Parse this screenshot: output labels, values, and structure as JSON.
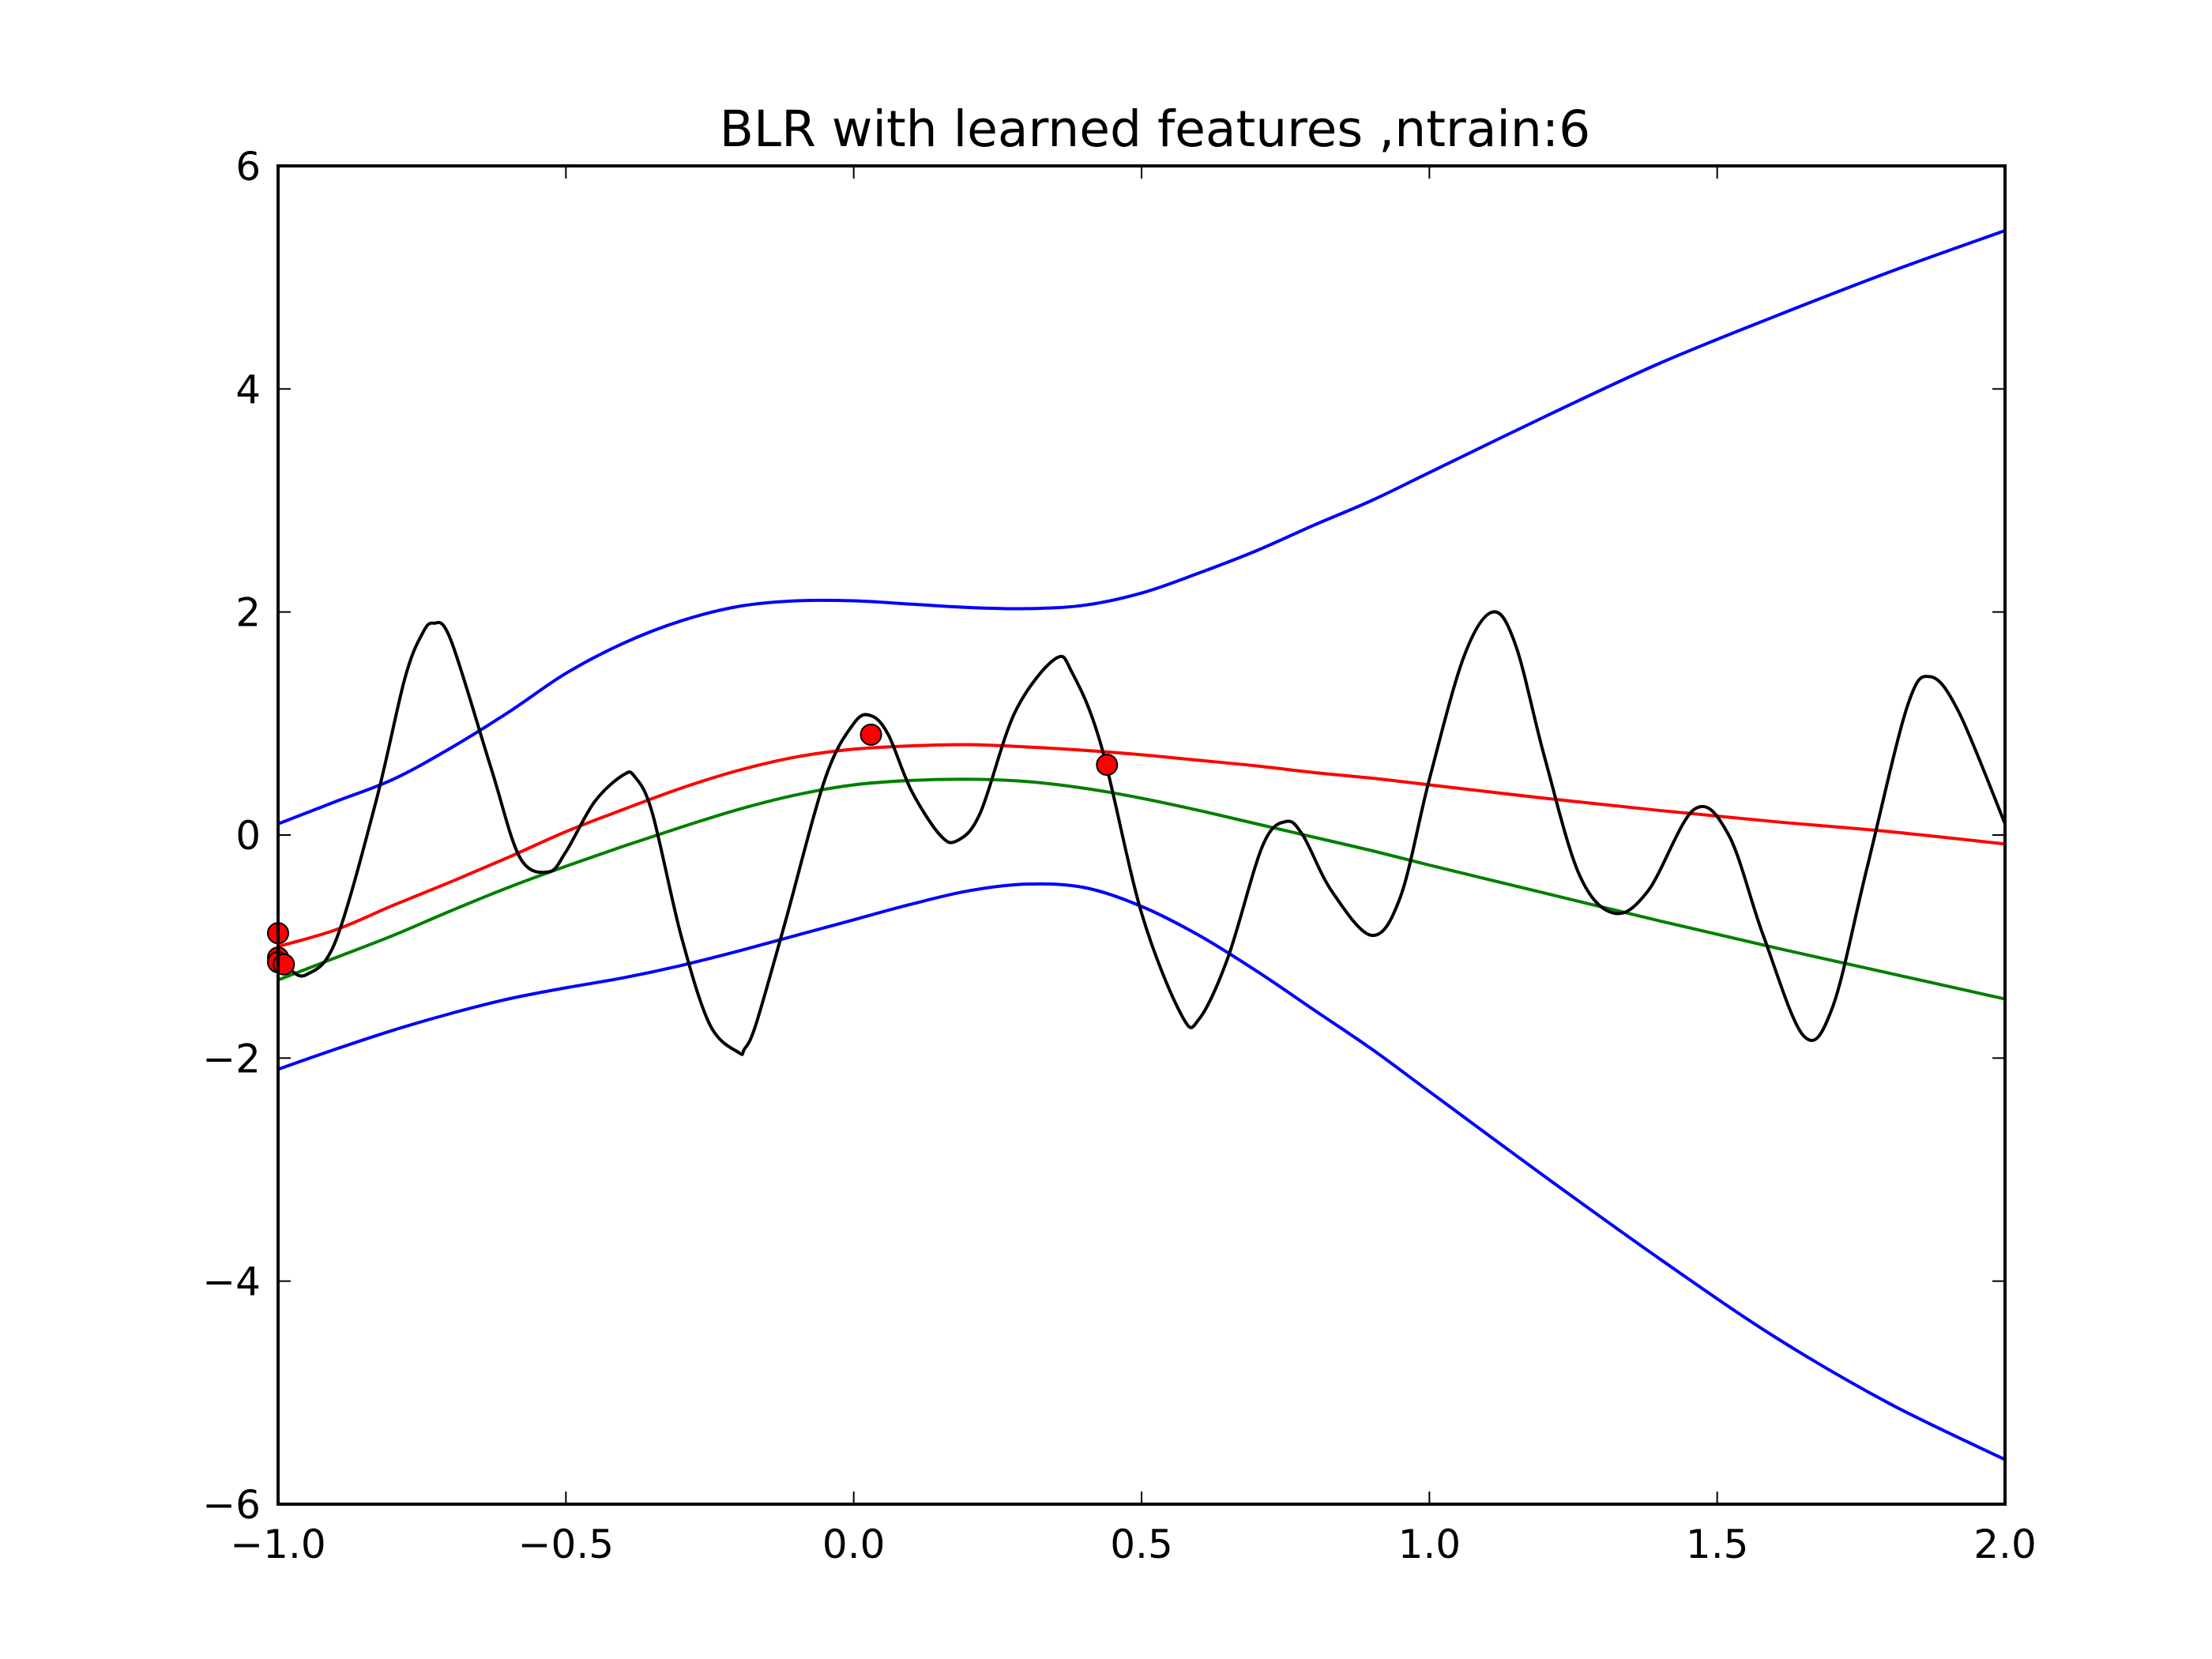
{
  "chart_data": {
    "type": "line",
    "title": "BLR with learned features ,ntrain:6",
    "xlabel": "",
    "ylabel": "",
    "xlim": [
      -1.0,
      2.0
    ],
    "ylim": [
      -6,
      6
    ],
    "xticks": [
      -1.0,
      -0.5,
      0.0,
      0.5,
      1.0,
      1.5,
      2.0
    ],
    "xtick_labels": [
      "−1.0",
      "−0.5",
      "0.0",
      "0.5",
      "1.0",
      "1.5",
      "2.0"
    ],
    "yticks": [
      -6,
      -4,
      -2,
      0,
      2,
      4,
      6
    ],
    "ytick_labels": [
      "−6",
      "−4",
      "−2",
      "0",
      "2",
      "4",
      "6"
    ],
    "grid": false,
    "legend": "none",
    "series": [
      {
        "color": "#0000ff",
        "x": [
          -1.0,
          -0.9,
          -0.8,
          -0.7,
          -0.6,
          -0.5,
          -0.4,
          -0.3,
          -0.2,
          -0.1,
          0.0,
          0.1,
          0.2,
          0.3,
          0.4,
          0.5,
          0.6,
          0.7,
          0.8,
          0.9,
          1.0,
          1.2,
          1.4,
          1.6,
          1.8,
          2.0
        ],
        "y": [
          0.1,
          0.3,
          0.5,
          0.78,
          1.1,
          1.45,
          1.72,
          1.92,
          2.05,
          2.1,
          2.1,
          2.07,
          2.04,
          2.03,
          2.06,
          2.17,
          2.35,
          2.55,
          2.78,
          3.0,
          3.25,
          3.75,
          4.23,
          4.65,
          5.05,
          5.42
        ]
      },
      {
        "color": "#0000ff",
        "x": [
          -1.0,
          -0.9,
          -0.8,
          -0.7,
          -0.6,
          -0.5,
          -0.4,
          -0.3,
          -0.2,
          -0.1,
          0.0,
          0.1,
          0.2,
          0.3,
          0.4,
          0.5,
          0.6,
          0.7,
          0.8,
          0.9,
          1.0,
          1.2,
          1.4,
          1.6,
          1.8,
          2.0
        ],
        "y": [
          -2.1,
          -1.92,
          -1.75,
          -1.6,
          -1.47,
          -1.37,
          -1.28,
          -1.17,
          -1.04,
          -0.9,
          -0.76,
          -0.62,
          -0.5,
          -0.44,
          -0.47,
          -0.64,
          -0.9,
          -1.22,
          -1.57,
          -1.92,
          -2.3,
          -3.06,
          -3.8,
          -4.5,
          -5.1,
          -5.6
        ]
      },
      {
        "color": "#ff0000",
        "x": [
          -1.0,
          -0.9,
          -0.8,
          -0.7,
          -0.6,
          -0.5,
          -0.4,
          -0.3,
          -0.2,
          -0.1,
          0.0,
          0.1,
          0.2,
          0.3,
          0.4,
          0.5,
          0.6,
          0.7,
          0.8,
          0.9,
          1.0,
          1.2,
          1.4,
          1.6,
          1.8,
          2.0
        ],
        "y": [
          -1.0,
          -0.85,
          -0.63,
          -0.42,
          -0.2,
          0.03,
          0.23,
          0.42,
          0.58,
          0.7,
          0.77,
          0.8,
          0.81,
          0.79,
          0.76,
          0.72,
          0.67,
          0.62,
          0.56,
          0.51,
          0.45,
          0.33,
          0.22,
          0.12,
          0.03,
          -0.08
        ]
      },
      {
        "color": "#007f00",
        "x": [
          -1.0,
          -0.9,
          -0.8,
          -0.7,
          -0.6,
          -0.5,
          -0.4,
          -0.3,
          -0.2,
          -0.1,
          0.0,
          0.1,
          0.2,
          0.3,
          0.4,
          0.5,
          0.6,
          0.7,
          0.8,
          0.9,
          1.0,
          1.2,
          1.4,
          1.6,
          1.8,
          2.0
        ],
        "y": [
          -1.3,
          -1.1,
          -0.9,
          -0.68,
          -0.47,
          -0.28,
          -0.1,
          0.07,
          0.23,
          0.36,
          0.45,
          0.49,
          0.5,
          0.48,
          0.42,
          0.33,
          0.22,
          0.1,
          -0.02,
          -0.14,
          -0.27,
          -0.52,
          -0.77,
          -1.01,
          -1.24,
          -1.47
        ]
      },
      {
        "color": "#000000",
        "x": [
          -1.0,
          -0.98,
          -0.95,
          -0.9,
          -0.83,
          -0.78,
          -0.75,
          -0.73,
          -0.7,
          -0.63,
          -0.58,
          -0.53,
          -0.5,
          -0.45,
          -0.4,
          -0.38,
          -0.35,
          -0.3,
          -0.25,
          -0.2,
          -0.19,
          -0.17,
          -0.12,
          -0.05,
          0.0,
          0.03,
          0.06,
          0.1,
          0.15,
          0.18,
          0.22,
          0.28,
          0.35,
          0.38,
          0.43,
          0.5,
          0.57,
          0.6,
          0.65,
          0.71,
          0.75,
          0.78,
          0.83,
          0.9,
          0.95,
          1.0,
          1.06,
          1.11,
          1.15,
          1.2,
          1.26,
          1.32,
          1.38,
          1.46,
          1.52,
          1.58,
          1.65,
          1.7,
          1.76,
          1.83,
          1.87,
          1.92,
          2.0
        ],
        "y": [
          -1.05,
          -1.2,
          -1.25,
          -0.95,
          0.3,
          1.4,
          1.8,
          1.9,
          1.75,
          0.6,
          -0.2,
          -0.33,
          -0.15,
          0.3,
          0.54,
          0.52,
          0.2,
          -0.9,
          -1.7,
          -1.95,
          -1.92,
          -1.7,
          -0.8,
          0.5,
          1.0,
          1.07,
          0.9,
          0.4,
          0.0,
          -0.05,
          0.2,
          1.1,
          1.58,
          1.45,
          0.8,
          -0.7,
          -1.62,
          -1.65,
          -1.1,
          -0.1,
          0.12,
          0.0,
          -0.5,
          -0.9,
          -0.55,
          0.5,
          1.6,
          2.0,
          1.7,
          0.7,
          -0.35,
          -0.7,
          -0.5,
          0.23,
          0.0,
          -0.9,
          -1.8,
          -1.55,
          -0.3,
          1.15,
          1.42,
          1.1,
          0.1
        ]
      }
    ],
    "points": {
      "color": "#ff0000",
      "x": [
        -1.0,
        -1.0,
        -1.0,
        -0.99,
        0.03,
        0.44
      ],
      "y": [
        -0.88,
        -1.1,
        -1.14,
        -1.16,
        0.9,
        0.63
      ]
    }
  }
}
